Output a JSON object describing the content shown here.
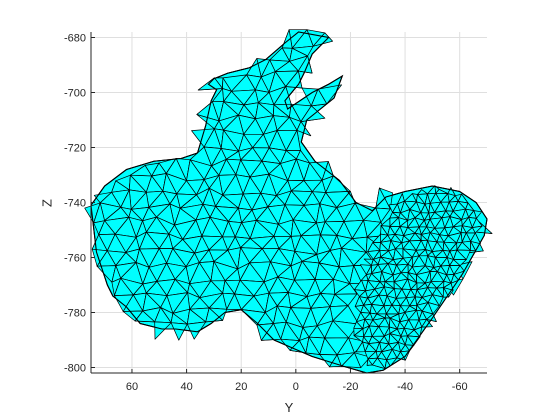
{
  "chart_data": {
    "type": "surface-mesh",
    "view": "2D projection onto Y–Z plane",
    "xlabel": "Y",
    "ylabel": "Z",
    "x_reversed": true,
    "xlim": [
      -70,
      75
    ],
    "ylim": [
      -802,
      -678
    ],
    "xticks": [
      60,
      40,
      20,
      0,
      -20,
      -40,
      -60
    ],
    "yticks": [
      -680,
      -700,
      -720,
      -740,
      -760,
      -780,
      -800
    ],
    "grid": true,
    "face_color": "#00ffff",
    "edge_color": "#000000",
    "outline": [
      [
        75,
        -741
      ],
      [
        70,
        -734
      ],
      [
        62,
        -728
      ],
      [
        52,
        -725
      ],
      [
        42,
        -724
      ],
      [
        36,
        -722
      ],
      [
        33,
        -712
      ],
      [
        31,
        -703
      ],
      [
        29,
        -699
      ],
      [
        32,
        -697
      ],
      [
        30,
        -695
      ],
      [
        25,
        -693
      ],
      [
        17,
        -691
      ],
      [
        11,
        -688
      ],
      [
        4,
        -682
      ],
      [
        -1,
        -678
      ],
      [
        -12,
        -680
      ],
      [
        -6,
        -686
      ],
      [
        -3,
        -693
      ],
      [
        -1,
        -697
      ],
      [
        4,
        -703
      ],
      [
        3,
        -706
      ],
      [
        -6,
        -700
      ],
      [
        -12,
        -697
      ],
      [
        -17,
        -694
      ],
      [
        -14,
        -702
      ],
      [
        -4,
        -710
      ],
      [
        -2,
        -718
      ],
      [
        -7,
        -725
      ],
      [
        -16,
        -732
      ],
      [
        -22,
        -740
      ],
      [
        -28,
        -743
      ],
      [
        -33,
        -738
      ],
      [
        -40,
        -736
      ],
      [
        -50,
        -734
      ],
      [
        -60,
        -736
      ],
      [
        -66,
        -740
      ],
      [
        -70,
        -746
      ],
      [
        -69,
        -752
      ],
      [
        -61,
        -766
      ],
      [
        -50,
        -782
      ],
      [
        -40,
        -796
      ],
      [
        -32,
        -801
      ],
      [
        -26,
        -802
      ],
      [
        -19,
        -800
      ],
      [
        -6,
        -796
      ],
      [
        8,
        -790
      ],
      [
        14,
        -784
      ],
      [
        20,
        -779
      ],
      [
        26,
        -780
      ],
      [
        31,
        -784
      ],
      [
        36,
        -787
      ],
      [
        44,
        -786
      ],
      [
        49,
        -786
      ],
      [
        57,
        -784
      ],
      [
        62,
        -778
      ],
      [
        67,
        -774
      ],
      [
        69,
        -770
      ],
      [
        73,
        -758
      ]
    ],
    "lobe_outline": [
      [
        -36,
        -740
      ],
      [
        -44,
        -736
      ],
      [
        -52,
        -735
      ],
      [
        -61,
        -737
      ],
      [
        -66,
        -742
      ],
      [
        -68,
        -750
      ],
      [
        -60,
        -766
      ],
      [
        -50,
        -782
      ],
      [
        -42,
        -795
      ],
      [
        -34,
        -800
      ],
      [
        -27,
        -799
      ],
      [
        -22,
        -790
      ],
      [
        -22,
        -776
      ],
      [
        -26,
        -762
      ],
      [
        -31,
        -750
      ]
    ]
  }
}
